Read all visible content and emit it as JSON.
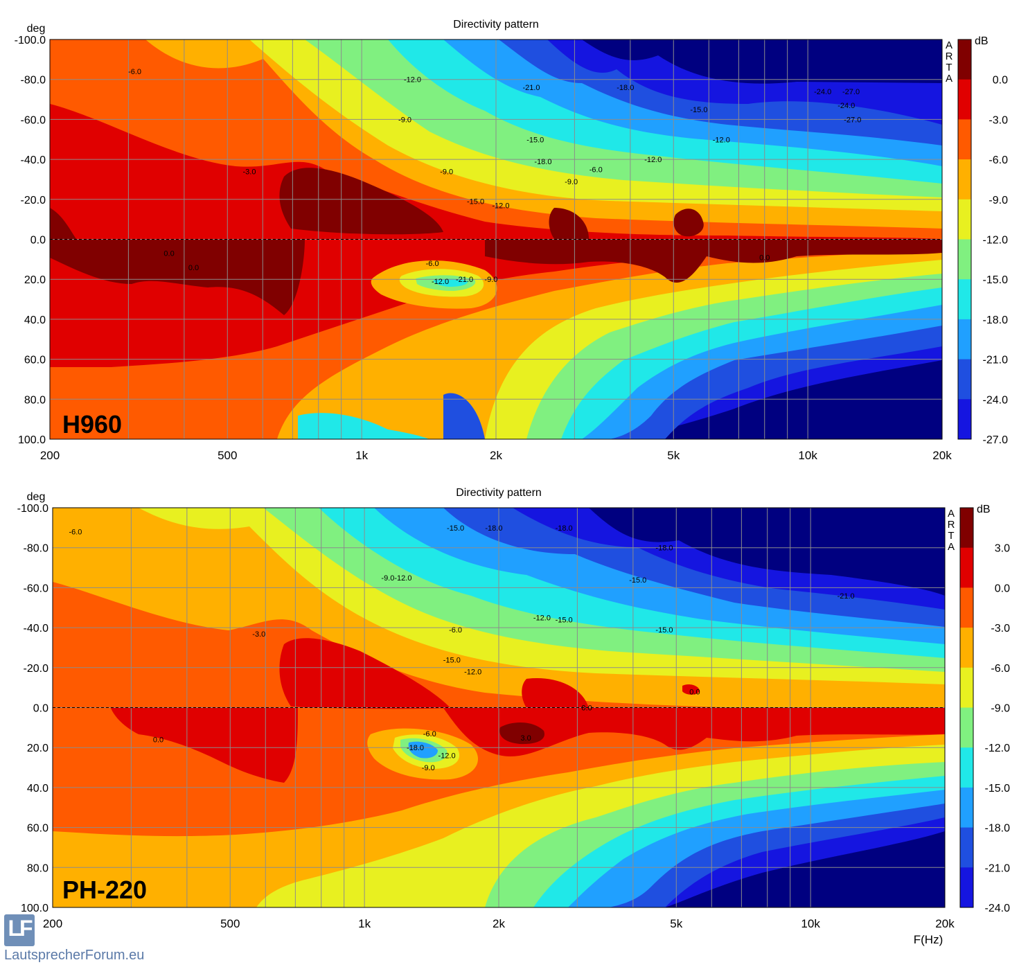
{
  "chart_data": [
    {
      "type": "heatmap",
      "title": "Directivity pattern",
      "panel_label": "H960",
      "ylabel": "deg",
      "xscale": "log",
      "xlim": [
        200,
        20000
      ],
      "ylim": [
        -100,
        100
      ],
      "x_ticks": [
        {
          "v": 200,
          "label": "200"
        },
        {
          "v": 500,
          "label": "500"
        },
        {
          "v": 1000,
          "label": "1k"
        },
        {
          "v": 2000,
          "label": "2k"
        },
        {
          "v": 5000,
          "label": "5k"
        },
        {
          "v": 10000,
          "label": "10k"
        },
        {
          "v": 20000,
          "label": "20k"
        }
      ],
      "y_ticks": [
        "-100.0",
        "-80.0",
        "-60.0",
        "-40.0",
        "-20.0",
        "0.0",
        "20.0",
        "40.0",
        "60.0",
        "80.0",
        "100.0"
      ],
      "colorbar": {
        "label": "dB",
        "side_text": [
          "A",
          "R",
          "T",
          "A"
        ],
        "ticks": [
          "0.0",
          "-3.0",
          "-6.0",
          "-9.0",
          "-12.0",
          "-15.0",
          "-18.0",
          "-21.0",
          "-24.0",
          "-27.0"
        ],
        "colors": [
          "#800000",
          "#e00000",
          "#ff5a00",
          "#ffb000",
          "#e8f020",
          "#80f080",
          "#20e8e8",
          "#20a0ff",
          "#1f4fe0",
          "#1515e0"
        ]
      },
      "contour_labels": [
        {
          "text": "-6.0",
          "f": 310,
          "deg": -84
        },
        {
          "text": "-3.0",
          "f": 560,
          "deg": -34
        },
        {
          "text": "-12.0",
          "f": 1300,
          "deg": -80
        },
        {
          "text": "-9.0",
          "f": 1250,
          "deg": -60
        },
        {
          "text": "-21.0",
          "f": 2400,
          "deg": -76
        },
        {
          "text": "-18.0",
          "f": 3900,
          "deg": -76
        },
        {
          "text": "-15.0",
          "f": 2450,
          "deg": -50
        },
        {
          "text": "-18.0",
          "f": 2550,
          "deg": -39
        },
        {
          "text": "-9.0",
          "f": 1550,
          "deg": -34
        },
        {
          "text": "-15.0",
          "f": 1800,
          "deg": -19
        },
        {
          "text": "-12.0",
          "f": 2050,
          "deg": -17
        },
        {
          "text": "-6.0",
          "f": 3350,
          "deg": -35
        },
        {
          "text": "-9.0",
          "f": 2950,
          "deg": -29
        },
        {
          "text": "-12.0",
          "f": 4500,
          "deg": -40
        },
        {
          "text": "-15.0",
          "f": 5700,
          "deg": -65
        },
        {
          "text": "-12.0",
          "f": 6400,
          "deg": -50
        },
        {
          "text": "-24.0",
          "f": 10800,
          "deg": -74
        },
        {
          "text": "-27.0",
          "f": 12500,
          "deg": -74
        },
        {
          "text": "-24.0",
          "f": 12200,
          "deg": -67
        },
        {
          "text": "-27.0",
          "f": 12600,
          "deg": -60
        },
        {
          "text": "0.0",
          "f": 370,
          "deg": 7
        },
        {
          "text": "0.0",
          "f": 420,
          "deg": 14
        },
        {
          "text": "-6.0",
          "f": 1440,
          "deg": 12
        },
        {
          "text": "-12.0",
          "f": 1500,
          "deg": 21
        },
        {
          "text": "-21.0",
          "f": 1700,
          "deg": 20
        },
        {
          "text": "-9.0",
          "f": 1950,
          "deg": 20
        },
        {
          "text": "0.0",
          "f": 8000,
          "deg": 9
        }
      ]
    },
    {
      "type": "heatmap",
      "title": "Directivity pattern",
      "panel_label": "PH-220",
      "ylabel": "deg",
      "xlabel": "F(Hz)",
      "xscale": "log",
      "xlim": [
        200,
        20000
      ],
      "ylim": [
        -100,
        100
      ],
      "x_ticks": [
        {
          "v": 200,
          "label": "200"
        },
        {
          "v": 500,
          "label": "500"
        },
        {
          "v": 1000,
          "label": "1k"
        },
        {
          "v": 2000,
          "label": "2k"
        },
        {
          "v": 5000,
          "label": "5k"
        },
        {
          "v": 10000,
          "label": "10k"
        },
        {
          "v": 20000,
          "label": "20k"
        }
      ],
      "y_ticks": [
        "-100.0",
        "-80.0",
        "-60.0",
        "-40.0",
        "-20.0",
        "0.0",
        "20.0",
        "40.0",
        "60.0",
        "80.0",
        "100.0"
      ],
      "colorbar": {
        "label": "dB",
        "side_text": [
          "A",
          "R",
          "T",
          "A"
        ],
        "ticks": [
          "3.0",
          "0.0",
          "-3.0",
          "-6.0",
          "-9.0",
          "-12.0",
          "-15.0",
          "-18.0",
          "-21.0",
          "-24.0"
        ],
        "colors": [
          "#800000",
          "#e00000",
          "#ff5a00",
          "#ffb000",
          "#e8f020",
          "#80f080",
          "#20e8e8",
          "#20a0ff",
          "#1f4fe0",
          "#1515e0"
        ]
      },
      "contour_labels": [
        {
          "text": "-6.0",
          "f": 225,
          "deg": -88
        },
        {
          "text": "-15.0",
          "f": 1600,
          "deg": -90
        },
        {
          "text": "-18.0",
          "f": 1950,
          "deg": -90
        },
        {
          "text": "-18.0",
          "f": 2800,
          "deg": -90
        },
        {
          "text": "-18.0",
          "f": 4700,
          "deg": -80
        },
        {
          "text": "-9.0-12.0",
          "f": 1180,
          "deg": -65
        },
        {
          "text": "-15.0",
          "f": 4100,
          "deg": -64
        },
        {
          "text": "-12.0",
          "f": 2500,
          "deg": -45
        },
        {
          "text": "-15.0",
          "f": 2800,
          "deg": -44
        },
        {
          "text": "-15.0",
          "f": 4700,
          "deg": -39
        },
        {
          "text": "-6.0",
          "f": 1600,
          "deg": -39
        },
        {
          "text": "-3.0",
          "f": 580,
          "deg": -37
        },
        {
          "text": "-15.0",
          "f": 1570,
          "deg": -24
        },
        {
          "text": "-12.0",
          "f": 1750,
          "deg": -18
        },
        {
          "text": "-21.0",
          "f": 12000,
          "deg": -56
        },
        {
          "text": "0.0",
          "f": 5500,
          "deg": -8
        },
        {
          "text": "0.0",
          "f": 3150,
          "deg": 0
        },
        {
          "text": "0.0",
          "f": 345,
          "deg": 16
        },
        {
          "text": "-6.0",
          "f": 1400,
          "deg": 13
        },
        {
          "text": "-18.0",
          "f": 1300,
          "deg": 20
        },
        {
          "text": "-12.0",
          "f": 1530,
          "deg": 24
        },
        {
          "text": "-9.0",
          "f": 1390,
          "deg": 30
        },
        {
          "text": "3.0",
          "f": 2300,
          "deg": 15
        }
      ]
    }
  ],
  "watermark": {
    "logo_letters": "LF",
    "text": "LautsprecherForum.eu"
  }
}
